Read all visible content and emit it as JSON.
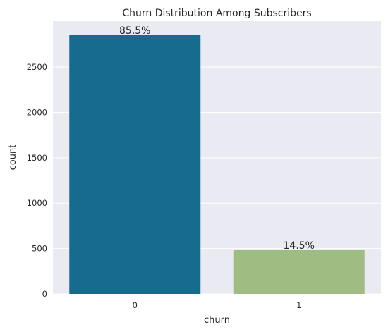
{
  "chart_data": {
    "type": "bar",
    "title": "Churn Distribution Among Subscribers",
    "xlabel": "churn",
    "ylabel": "count",
    "categories": [
      "0",
      "1"
    ],
    "values": [
      2850,
      483
    ],
    "data_labels": [
      "85.5%",
      "14.5%"
    ],
    "colors": [
      "#176b8f",
      "#9fbc82"
    ],
    "ylim": [
      0,
      2850
    ],
    "yticks": [
      0,
      500,
      1000,
      1500,
      2000,
      2500
    ],
    "background": "#eaeaf2",
    "grid": true,
    "legend": "none"
  }
}
